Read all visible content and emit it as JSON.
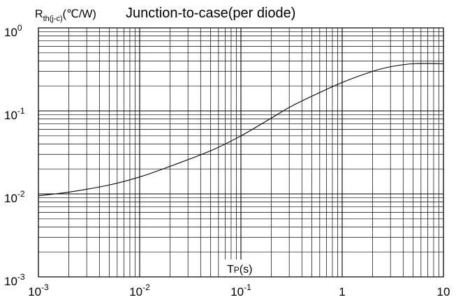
{
  "chart_data": {
    "type": "line",
    "title": "Junction-to-case(per diode)",
    "ylabel": {
      "main": "R",
      "sub": "th(j-c)",
      "unit": "(℃/W)"
    },
    "xlabel": {
      "main": "T",
      "sub": "P",
      "unit": "(s)"
    },
    "xscale": "log",
    "yscale": "log",
    "xlim": [
      0.001,
      10
    ],
    "ylim": [
      0.001,
      1
    ],
    "grid": true,
    "x_ticks": [
      {
        "base": "10",
        "exp": "-3"
      },
      {
        "base": "10",
        "exp": "-2"
      },
      {
        "base": "10",
        "exp": "-1"
      },
      {
        "base": "1",
        "exp": ""
      },
      {
        "base": "10",
        "exp": ""
      }
    ],
    "y_ticks": [
      {
        "base": "10",
        "exp": "-3"
      },
      {
        "base": "10",
        "exp": "-2"
      },
      {
        "base": "10",
        "exp": "-1"
      },
      {
        "base": "10",
        "exp": "0"
      }
    ],
    "series": [
      {
        "x": [
          0.001,
          0.002,
          0.005,
          0.01,
          0.02,
          0.05,
          0.1,
          0.2,
          0.3,
          0.5,
          1,
          2,
          3,
          5,
          10
        ],
        "y": [
          0.0095,
          0.0105,
          0.0128,
          0.016,
          0.0215,
          0.033,
          0.05,
          0.082,
          0.11,
          0.15,
          0.22,
          0.3,
          0.34,
          0.37,
          0.37
        ]
      }
    ]
  }
}
